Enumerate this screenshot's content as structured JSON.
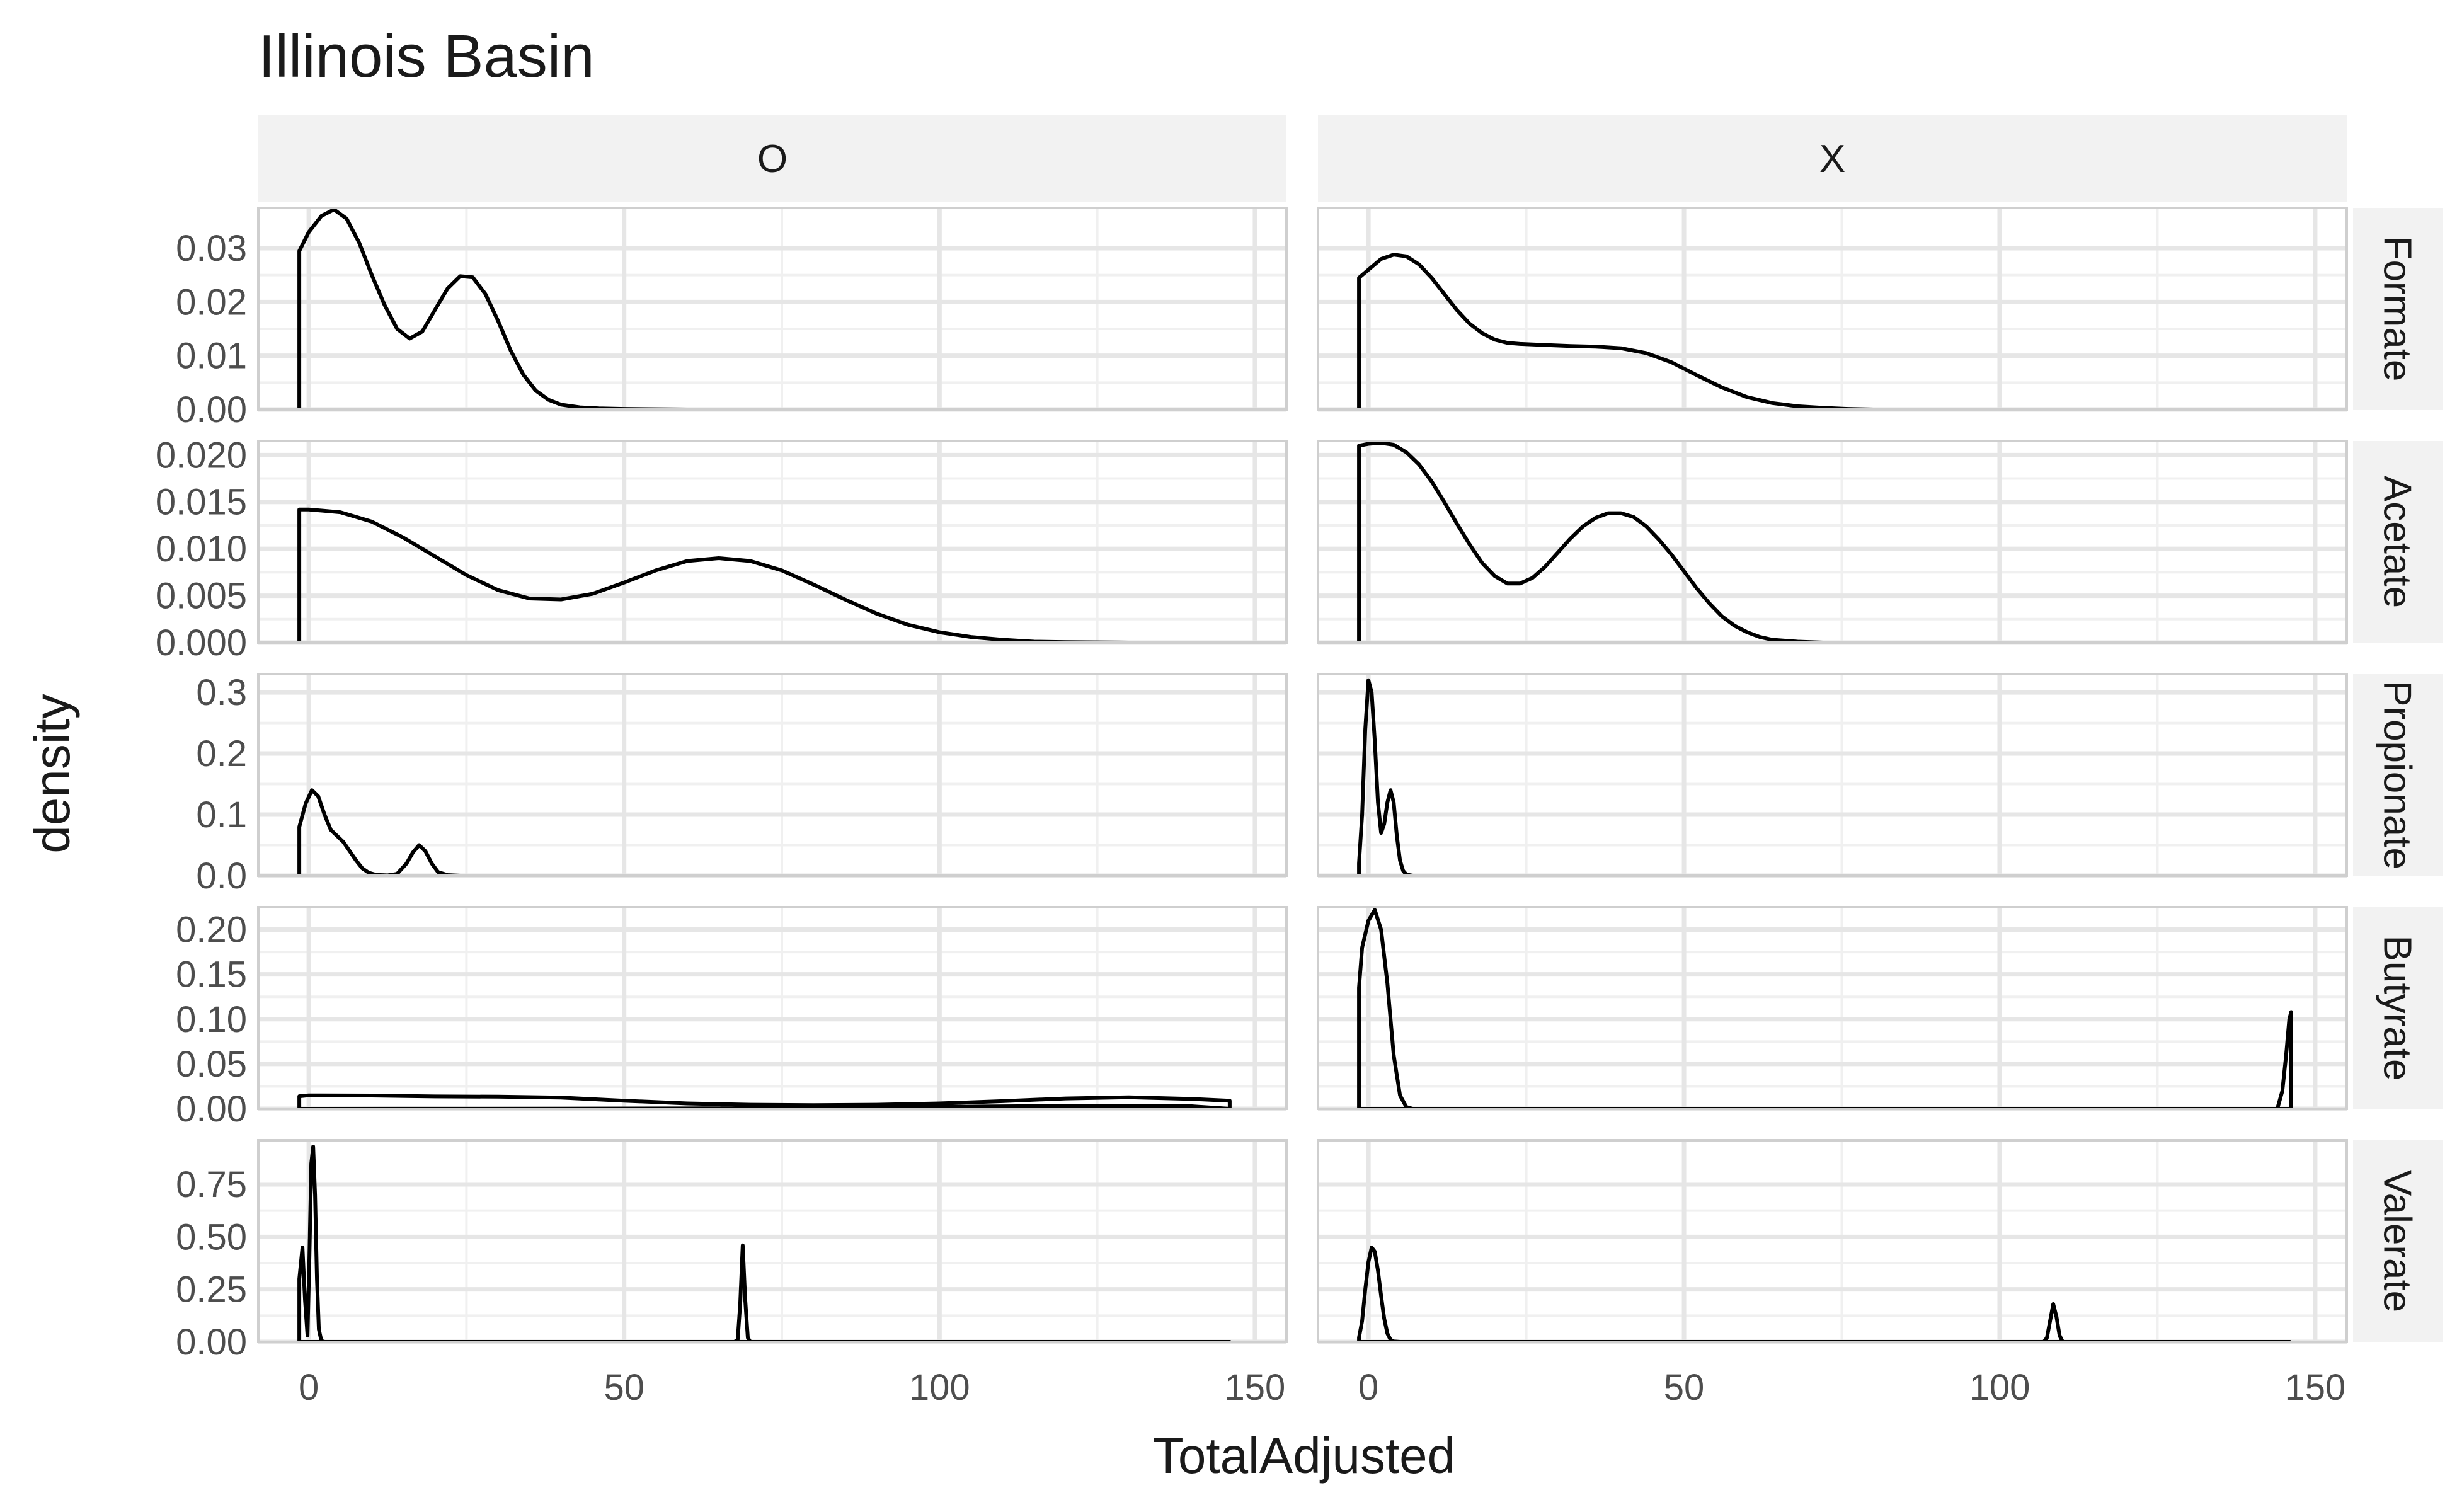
{
  "chart_data": {
    "type": "line",
    "title": "Illinois Basin",
    "xlabel": "TotalAdjusted",
    "ylabel": "density",
    "xlim": [
      -8,
      155
    ],
    "x_ticks": [
      0,
      50,
      100,
      150
    ],
    "x_tick_labels": [
      "0",
      "50",
      "100",
      "150"
    ],
    "column_facets": [
      "O",
      "X"
    ],
    "row_facets": [
      "Formate",
      "Acetate",
      "Propionate",
      "Butyrate",
      "Valerate"
    ],
    "rows": [
      {
        "facet": "Formate",
        "ylim": [
          0,
          0.0375
        ],
        "y_ticks": [
          0,
          0.01,
          0.02,
          0.03
        ],
        "y_tick_labels": [
          "0.00",
          "0.01",
          "0.02",
          "0.03"
        ]
      },
      {
        "facet": "Acetate",
        "ylim": [
          0,
          0.0215
        ],
        "y_ticks": [
          0,
          0.005,
          0.01,
          0.015,
          0.02
        ],
        "y_tick_labels": [
          "0.000",
          "0.005",
          "0.010",
          "0.015",
          "0.020"
        ]
      },
      {
        "facet": "Propionate",
        "ylim": [
          0,
          0.33
        ],
        "y_ticks": [
          0,
          0.1,
          0.2,
          0.3
        ],
        "y_tick_labels": [
          "0.0",
          "0.1",
          "0.2",
          "0.3"
        ]
      },
      {
        "facet": "Butyrate",
        "ylim": [
          0,
          0.225
        ],
        "y_ticks": [
          0,
          0.05,
          0.1,
          0.15,
          0.2
        ],
        "y_tick_labels": [
          "0.00",
          "0.05",
          "0.10",
          "0.15",
          "0.20"
        ]
      },
      {
        "facet": "Valerate",
        "ylim": [
          0,
          0.96
        ],
        "y_ticks": [
          0,
          0.25,
          0.5,
          0.75
        ],
        "y_tick_labels": [
          "0.00",
          "0.25",
          "0.50",
          "0.75"
        ]
      }
    ],
    "series": [
      {
        "col": "O",
        "row": "Formate",
        "x": [
          -1.5,
          -1.5,
          0,
          2,
          4,
          6,
          8,
          10,
          12,
          14,
          16,
          18,
          20,
          22,
          24,
          26,
          28,
          30,
          32,
          34,
          36,
          38,
          40,
          43,
          46,
          50,
          60,
          80,
          100,
          146,
          146
        ],
        "y": [
          0,
          0.0295,
          0.033,
          0.036,
          0.0372,
          0.0355,
          0.031,
          0.025,
          0.0195,
          0.015,
          0.0132,
          0.0145,
          0.0185,
          0.0225,
          0.0248,
          0.0246,
          0.0215,
          0.0165,
          0.011,
          0.0065,
          0.0035,
          0.0018,
          0.0009,
          0.0004,
          0.0002,
          0.0001,
          0,
          0,
          0,
          0,
          0
        ]
      },
      {
        "col": "X",
        "row": "Formate",
        "x": [
          -1.5,
          -1.5,
          0,
          2,
          4,
          6,
          8,
          10,
          12,
          14,
          16,
          18,
          20,
          22,
          24,
          28,
          32,
          36,
          40,
          44,
          48,
          52,
          56,
          60,
          64,
          68,
          72,
          76,
          80,
          90,
          100,
          146,
          146
        ],
        "y": [
          0,
          0.0245,
          0.026,
          0.028,
          0.0288,
          0.0285,
          0.027,
          0.0245,
          0.0215,
          0.0185,
          0.016,
          0.0142,
          0.013,
          0.0124,
          0.0122,
          0.012,
          0.0118,
          0.0117,
          0.0114,
          0.0105,
          0.0088,
          0.0064,
          0.0041,
          0.0023,
          0.0012,
          0.0006,
          0.0003,
          0.0001,
          0,
          0,
          0,
          0,
          0
        ]
      },
      {
        "col": "O",
        "row": "Acetate",
        "x": [
          -1.5,
          -1.5,
          0,
          5,
          10,
          15,
          20,
          25,
          30,
          35,
          40,
          45,
          50,
          55,
          60,
          65,
          70,
          75,
          80,
          85,
          90,
          95,
          100,
          105,
          110,
          115,
          120,
          130,
          146,
          146
        ],
        "y": [
          0,
          0.0142,
          0.0142,
          0.0139,
          0.0129,
          0.0112,
          0.0092,
          0.0072,
          0.0056,
          0.0047,
          0.0046,
          0.0052,
          0.0064,
          0.0077,
          0.0087,
          0.009,
          0.0087,
          0.0077,
          0.0062,
          0.0046,
          0.0031,
          0.0019,
          0.0011,
          0.0006,
          0.0003,
          0.0001,
          5e-05,
          0,
          0,
          0
        ]
      },
      {
        "col": "X",
        "row": "Acetate",
        "x": [
          -1.5,
          -1.5,
          0,
          2,
          4,
          6,
          8,
          10,
          12,
          14,
          16,
          18,
          20,
          22,
          24,
          26,
          28,
          30,
          32,
          34,
          36,
          38,
          40,
          42,
          44,
          46,
          48,
          50,
          52,
          54,
          56,
          58,
          60,
          62,
          64,
          66,
          68,
          70,
          72,
          76,
          80,
          100,
          146,
          146
        ],
        "y": [
          0,
          0.021,
          0.0212,
          0.0213,
          0.0211,
          0.0203,
          0.019,
          0.0172,
          0.015,
          0.0127,
          0.0105,
          0.0085,
          0.0071,
          0.0063,
          0.0063,
          0.0069,
          0.0081,
          0.0096,
          0.0111,
          0.0124,
          0.0133,
          0.0138,
          0.0138,
          0.0134,
          0.0124,
          0.011,
          0.0094,
          0.0076,
          0.0058,
          0.0042,
          0.0028,
          0.0018,
          0.0011,
          0.0006,
          0.0003,
          0.0002,
          0.0001,
          5e-05,
          0,
          0,
          0,
          0,
          0,
          0
        ]
      },
      {
        "col": "O",
        "row": "Propionate",
        "x": [
          -1.5,
          -1.5,
          -0.5,
          0.5,
          1.5,
          2.5,
          3.5,
          4.5,
          5.5,
          6.5,
          7.5,
          8.5,
          9.5,
          10.5,
          11.5,
          12.5,
          14,
          15.5,
          16.5,
          17.5,
          18.5,
          19.5,
          20.5,
          22,
          24,
          30,
          146,
          146
        ],
        "y": [
          0,
          0.08,
          0.118,
          0.14,
          0.13,
          0.1,
          0.075,
          0.065,
          0.055,
          0.04,
          0.025,
          0.012,
          0.005,
          0.002,
          0.001,
          0.0005,
          0.003,
          0.02,
          0.038,
          0.05,
          0.04,
          0.02,
          0.006,
          0.001,
          0,
          0,
          0,
          0
        ]
      },
      {
        "col": "X",
        "row": "Propionate",
        "x": [
          -1.5,
          -1.5,
          -1,
          -0.5,
          0,
          0.5,
          1,
          1.5,
          2,
          2.5,
          3,
          3.5,
          4,
          4.5,
          5,
          5.5,
          6,
          7,
          8,
          146,
          146
        ],
        "y": [
          0,
          0.02,
          0.1,
          0.24,
          0.32,
          0.3,
          0.22,
          0.12,
          0.07,
          0.085,
          0.12,
          0.14,
          0.12,
          0.065,
          0.025,
          0.008,
          0.002,
          0,
          0,
          0,
          0
        ]
      },
      {
        "col": "O",
        "row": "Butyrate",
        "x": [
          -1.5,
          -1.5,
          0,
          10,
          20,
          30,
          40,
          50,
          60,
          70,
          80,
          90,
          100,
          110,
          120,
          130,
          140,
          146,
          146,
          140,
          120,
          100,
          80,
          60,
          40,
          20,
          0,
          -1.5
        ],
        "y": [
          0,
          0.014,
          0.015,
          0.0148,
          0.0138,
          0.0135,
          0.0125,
          0.009,
          0.006,
          0.0045,
          0.004,
          0.0045,
          0.006,
          0.0085,
          0.0115,
          0.0128,
          0.011,
          0.009,
          0,
          0.0028,
          0.0032,
          0.0022,
          0.0011,
          0.0004,
          0.0002,
          0.0001,
          0,
          0
        ]
      },
      {
        "col": "X",
        "row": "Butyrate",
        "x": [
          -1.5,
          -1.5,
          -1,
          0,
          1,
          2,
          3,
          4,
          5,
          6,
          7,
          146,
          144,
          144.8,
          145.4,
          145.9,
          146.2,
          146.2
        ],
        "y": [
          0,
          0.135,
          0.18,
          0.21,
          0.222,
          0.2,
          0.14,
          0.06,
          0.015,
          0.002,
          0,
          0,
          0,
          0.02,
          0.06,
          0.1,
          0.108,
          0
        ]
      },
      {
        "col": "O",
        "row": "Valerate",
        "x": [
          -1.5,
          -1.5,
          -1,
          -0.6,
          -0.2,
          0.1,
          0.4,
          0.7,
          1,
          1.3,
          1.6,
          2,
          2.5,
          67.5,
          68,
          68.4,
          68.8,
          69.2,
          69.6,
          70,
          146,
          146
        ],
        "y": [
          0,
          0.3,
          0.45,
          0.2,
          0.03,
          0.4,
          0.85,
          0.93,
          0.7,
          0.3,
          0.06,
          0.005,
          0,
          0,
          0.01,
          0.18,
          0.46,
          0.2,
          0.02,
          0,
          0,
          0
        ]
      },
      {
        "col": "X",
        "row": "Valerate",
        "x": [
          -1.5,
          -1.5,
          -1,
          -0.5,
          0,
          0.5,
          1,
          1.5,
          2,
          2.5,
          3,
          3.5,
          4,
          5,
          107,
          107.5,
          108,
          108.5,
          109,
          109.5,
          110,
          146,
          146
        ],
        "y": [
          0,
          0.02,
          0.1,
          0.25,
          0.38,
          0.45,
          0.43,
          0.34,
          0.22,
          0.11,
          0.04,
          0.01,
          0.002,
          0,
          0,
          0.02,
          0.1,
          0.18,
          0.12,
          0.03,
          0,
          0,
          0
        ]
      }
    ]
  }
}
